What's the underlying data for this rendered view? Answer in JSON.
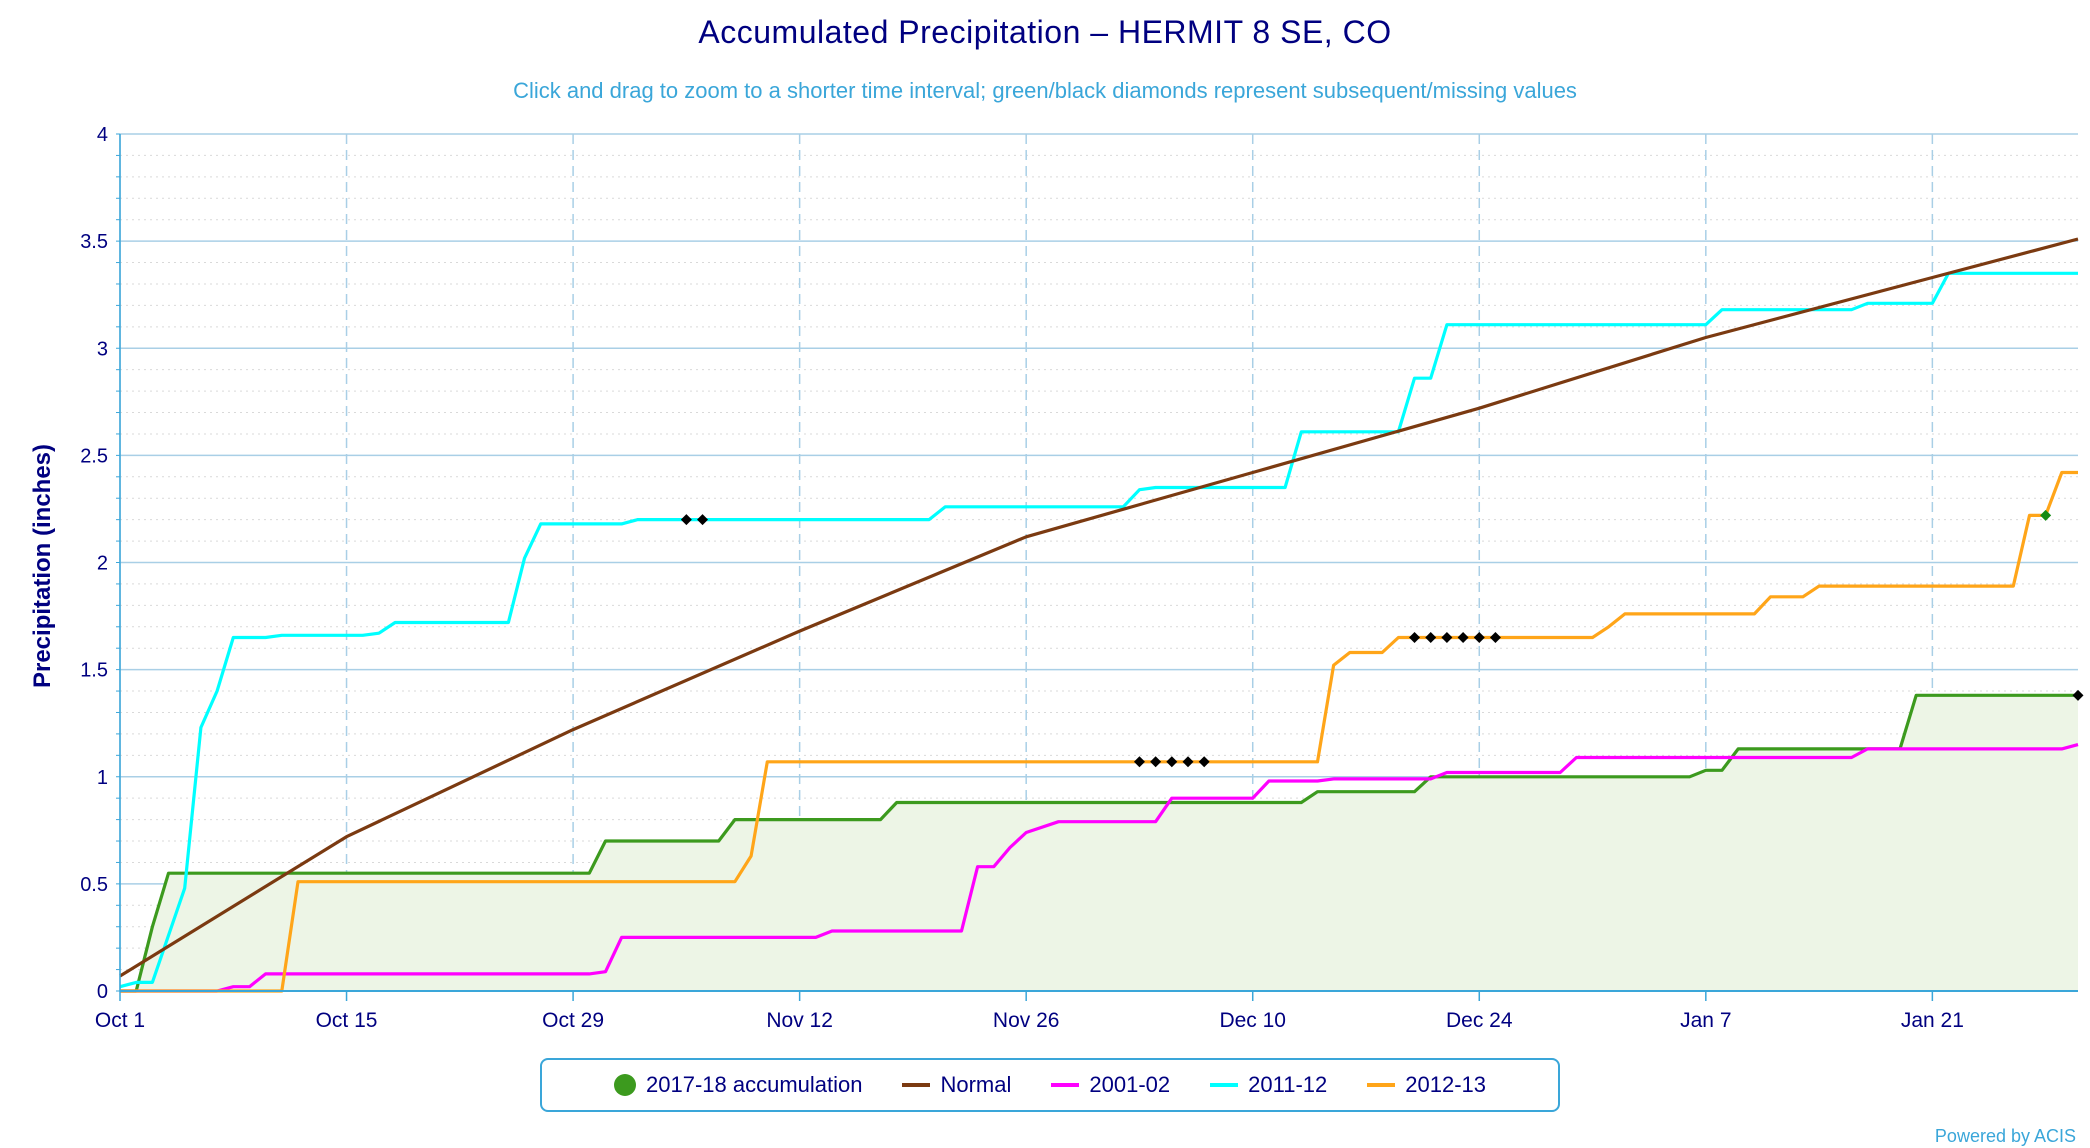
{
  "title": "Accumulated Precipitation – HERMIT 8 SE, CO",
  "subtitle": "Click and drag to zoom to a shorter time interval; green/black diamonds represent subsequent/missing values",
  "credit": "Powered by ACIS",
  "chart_data": {
    "type": "line",
    "title": "Accumulated Precipitation – HERMIT 8 SE, CO",
    "ylabel": "Precipitation (inches)",
    "xlabel": "",
    "x_unit": "date",
    "x_range": [
      "Oct 1",
      "Feb 2"
    ],
    "ylim": [
      0,
      4
    ],
    "yticks": [
      "0",
      "0.5",
      "1",
      "1.5",
      "2",
      "2.5",
      "3",
      "3.5",
      "4"
    ],
    "xticks": [
      {
        "label": "Oct 1",
        "day": 0
      },
      {
        "label": "Oct 15",
        "day": 14
      },
      {
        "label": "Oct 29",
        "day": 28
      },
      {
        "label": "Nov 12",
        "day": 42
      },
      {
        "label": "Nov 26",
        "day": 56
      },
      {
        "label": "Dec 10",
        "day": 70
      },
      {
        "label": "Dec 24",
        "day": 84
      },
      {
        "label": "Jan 7",
        "day": 98
      },
      {
        "label": "Jan 21",
        "day": 112
      }
    ],
    "grid": true,
    "legend_position": "bottom",
    "series": [
      {
        "name": "2017-18 accumulation",
        "color": "#3c9a1e",
        "fill": "#edf5e6",
        "points": [
          [
            0,
            0
          ],
          [
            1,
            0
          ],
          [
            2,
            0.3
          ],
          [
            3,
            0.55
          ],
          [
            29,
            0.55
          ],
          [
            30,
            0.7
          ],
          [
            37,
            0.7
          ],
          [
            38,
            0.8
          ],
          [
            47,
            0.8
          ],
          [
            48,
            0.88
          ],
          [
            73,
            0.88
          ],
          [
            74,
            0.93
          ],
          [
            80,
            0.93
          ],
          [
            81,
            1.0
          ],
          [
            97,
            1.0
          ],
          [
            98,
            1.03
          ],
          [
            99,
            1.03
          ],
          [
            100,
            1.13
          ],
          [
            110,
            1.13
          ],
          [
            111,
            1.38
          ],
          [
            121,
            1.38
          ]
        ]
      },
      {
        "name": "Normal",
        "color": "#7b3a11",
        "points": [
          [
            0,
            0.07
          ],
          [
            14,
            0.72
          ],
          [
            28,
            1.22
          ],
          [
            42,
            1.68
          ],
          [
            56,
            2.12
          ],
          [
            70,
            2.42
          ],
          [
            84,
            2.72
          ],
          [
            98,
            3.05
          ],
          [
            112,
            3.33
          ],
          [
            121,
            3.51
          ]
        ]
      },
      {
        "name": "2001-02",
        "color": "#ff00ff",
        "points": [
          [
            0,
            0
          ],
          [
            6,
            0
          ],
          [
            7,
            0.02
          ],
          [
            8,
            0.02
          ],
          [
            9,
            0.08
          ],
          [
            29,
            0.08
          ],
          [
            30,
            0.09
          ],
          [
            31,
            0.25
          ],
          [
            43,
            0.25
          ],
          [
            44,
            0.28
          ],
          [
            52,
            0.28
          ],
          [
            53,
            0.58
          ],
          [
            54,
            0.58
          ],
          [
            55,
            0.67
          ],
          [
            56,
            0.74
          ],
          [
            58,
            0.79
          ],
          [
            64,
            0.79
          ],
          [
            65,
            0.9
          ],
          [
            70,
            0.9
          ],
          [
            71,
            0.98
          ],
          [
            74,
            0.98
          ],
          [
            75,
            0.99
          ],
          [
            81,
            0.99
          ],
          [
            82,
            1.02
          ],
          [
            89,
            1.02
          ],
          [
            90,
            1.09
          ],
          [
            107,
            1.09
          ],
          [
            108,
            1.13
          ],
          [
            120,
            1.13
          ],
          [
            121,
            1.15
          ]
        ]
      },
      {
        "name": "2011-12",
        "color": "#00ffff",
        "points": [
          [
            0,
            0.02
          ],
          [
            1,
            0.04
          ],
          [
            2,
            0.04
          ],
          [
            4,
            0.48
          ],
          [
            5,
            1.23
          ],
          [
            6,
            1.4
          ],
          [
            7,
            1.65
          ],
          [
            9,
            1.65
          ],
          [
            10,
            1.66
          ],
          [
            15,
            1.66
          ],
          [
            16,
            1.67
          ],
          [
            17,
            1.72
          ],
          [
            24,
            1.72
          ],
          [
            25,
            2.02
          ],
          [
            26,
            2.18
          ],
          [
            31,
            2.18
          ],
          [
            32,
            2.2
          ],
          [
            50,
            2.2
          ],
          [
            51,
            2.26
          ],
          [
            62,
            2.26
          ],
          [
            63,
            2.34
          ],
          [
            64,
            2.35
          ],
          [
            72,
            2.35
          ],
          [
            73,
            2.61
          ],
          [
            79,
            2.61
          ],
          [
            80,
            2.86
          ],
          [
            81,
            2.86
          ],
          [
            82,
            3.11
          ],
          [
            98,
            3.11
          ],
          [
            99,
            3.18
          ],
          [
            107,
            3.18
          ],
          [
            108,
            3.21
          ],
          [
            112,
            3.21
          ],
          [
            113,
            3.35
          ],
          [
            121,
            3.35
          ]
        ]
      },
      {
        "name": "2012-13",
        "color": "#ffa519",
        "points": [
          [
            0,
            0
          ],
          [
            10,
            0
          ],
          [
            11,
            0.51
          ],
          [
            38,
            0.51
          ],
          [
            39,
            0.63
          ],
          [
            40,
            1.07
          ],
          [
            74,
            1.07
          ],
          [
            75,
            1.52
          ],
          [
            76,
            1.58
          ],
          [
            78,
            1.58
          ],
          [
            79,
            1.65
          ],
          [
            91,
            1.65
          ],
          [
            92,
            1.7
          ],
          [
            93,
            1.76
          ],
          [
            101,
            1.76
          ],
          [
            102,
            1.84
          ],
          [
            104,
            1.84
          ],
          [
            105,
            1.89
          ],
          [
            117,
            1.89
          ],
          [
            118,
            2.22
          ],
          [
            119,
            2.22
          ],
          [
            120,
            2.42
          ],
          [
            121,
            2.42
          ]
        ]
      }
    ],
    "missing_markers": [
      {
        "series": "2011-12",
        "color": "#000000",
        "points": [
          [
            35,
            2.2
          ],
          [
            36,
            2.2
          ]
        ]
      },
      {
        "series": "2012-13",
        "color": "#000000",
        "points": [
          [
            63,
            1.07
          ],
          [
            64,
            1.07
          ],
          [
            65,
            1.07
          ],
          [
            66,
            1.07
          ],
          [
            67,
            1.07
          ]
        ]
      },
      {
        "series": "2012-13",
        "color": "#000000",
        "points": [
          [
            80,
            1.65
          ],
          [
            81,
            1.65
          ],
          [
            82,
            1.65
          ],
          [
            83,
            1.65
          ],
          [
            84,
            1.65
          ],
          [
            85,
            1.65
          ]
        ]
      },
      {
        "series": "2017-18 accumulation",
        "color": "#000000",
        "points": [
          [
            121,
            1.38
          ]
        ]
      }
    ],
    "subsequent_markers": [
      {
        "series": "2012-13",
        "color": "#138a13",
        "points": [
          [
            119,
            2.22
          ]
        ]
      }
    ]
  },
  "colors": {
    "axis_text": "#000080",
    "grid_major": "#a9cfe6",
    "grid_minor": "#d9d9d9",
    "axis": "#3aa6d9"
  }
}
